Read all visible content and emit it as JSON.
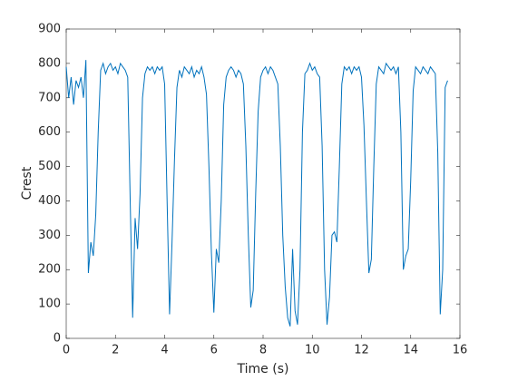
{
  "chart_data": {
    "type": "line",
    "xlabel": "Time (s)",
    "ylabel": "Crest",
    "color": "#0072bd",
    "xlim": [
      0,
      16
    ],
    "ylim": [
      0,
      900
    ],
    "xticks": [
      0,
      2,
      4,
      6,
      8,
      10,
      12,
      14,
      16
    ],
    "yticks": [
      0,
      100,
      200,
      300,
      400,
      500,
      600,
      700,
      800,
      900
    ],
    "grid": false,
    "x": [
      0.0,
      0.1,
      0.2,
      0.3,
      0.4,
      0.5,
      0.6,
      0.7,
      0.8,
      0.9,
      1.0,
      1.1,
      1.2,
      1.3,
      1.4,
      1.5,
      1.6,
      1.7,
      1.8,
      1.9,
      2.0,
      2.1,
      2.2,
      2.3,
      2.4,
      2.5,
      2.6,
      2.7,
      2.8,
      2.9,
      3.0,
      3.1,
      3.2,
      3.3,
      3.4,
      3.5,
      3.6,
      3.7,
      3.8,
      3.9,
      4.0,
      4.1,
      4.2,
      4.3,
      4.4,
      4.5,
      4.6,
      4.7,
      4.8,
      4.9,
      5.0,
      5.1,
      5.2,
      5.3,
      5.4,
      5.5,
      5.6,
      5.7,
      5.8,
      5.9,
      6.0,
      6.1,
      6.2,
      6.3,
      6.4,
      6.5,
      6.6,
      6.7,
      6.8,
      6.9,
      7.0,
      7.1,
      7.2,
      7.3,
      7.4,
      7.5,
      7.6,
      7.7,
      7.8,
      7.9,
      8.0,
      8.1,
      8.2,
      8.3,
      8.4,
      8.5,
      8.6,
      8.7,
      8.8,
      8.9,
      9.0,
      9.1,
      9.2,
      9.3,
      9.4,
      9.5,
      9.6,
      9.7,
      9.8,
      9.9,
      10.0,
      10.1,
      10.2,
      10.3,
      10.4,
      10.5,
      10.6,
      10.7,
      10.8,
      10.9,
      11.0,
      11.1,
      11.2,
      11.3,
      11.4,
      11.5,
      11.6,
      11.7,
      11.8,
      11.9,
      12.0,
      12.1,
      12.2,
      12.3,
      12.4,
      12.5,
      12.6,
      12.7,
      12.8,
      12.9,
      13.0,
      13.1,
      13.2,
      13.3,
      13.4,
      13.5,
      13.6,
      13.7,
      13.8,
      13.9,
      14.0,
      14.1,
      14.2,
      14.3,
      14.4,
      14.5,
      14.6,
      14.7,
      14.8,
      14.9,
      15.0,
      15.1,
      15.2,
      15.3,
      15.4,
      15.5
    ],
    "values": [
      790,
      700,
      760,
      680,
      750,
      730,
      760,
      700,
      810,
      190,
      280,
      240,
      360,
      600,
      780,
      800,
      770,
      790,
      800,
      780,
      790,
      770,
      800,
      790,
      780,
      760,
      400,
      60,
      350,
      260,
      420,
      700,
      770,
      790,
      780,
      790,
      770,
      790,
      780,
      790,
      740,
      400,
      70,
      280,
      520,
      730,
      780,
      760,
      790,
      780,
      770,
      790,
      760,
      780,
      770,
      790,
      760,
      710,
      500,
      250,
      75,
      260,
      220,
      400,
      680,
      760,
      780,
      790,
      780,
      760,
      780,
      770,
      740,
      560,
      300,
      90,
      140,
      420,
      660,
      760,
      780,
      790,
      770,
      790,
      780,
      760,
      740,
      560,
      300,
      150,
      60,
      35,
      260,
      80,
      40,
      200,
      600,
      770,
      780,
      800,
      780,
      790,
      770,
      760,
      560,
      200,
      40,
      120,
      300,
      310,
      280,
      500,
      740,
      790,
      780,
      790,
      770,
      790,
      780,
      790,
      760,
      620,
      400,
      190,
      230,
      500,
      740,
      790,
      780,
      770,
      800,
      790,
      780,
      790,
      770,
      790,
      600,
      200,
      240,
      260,
      460,
      720,
      790,
      780,
      770,
      790,
      780,
      770,
      790,
      780,
      770,
      540,
      70,
      200,
      730,
      750
    ]
  }
}
